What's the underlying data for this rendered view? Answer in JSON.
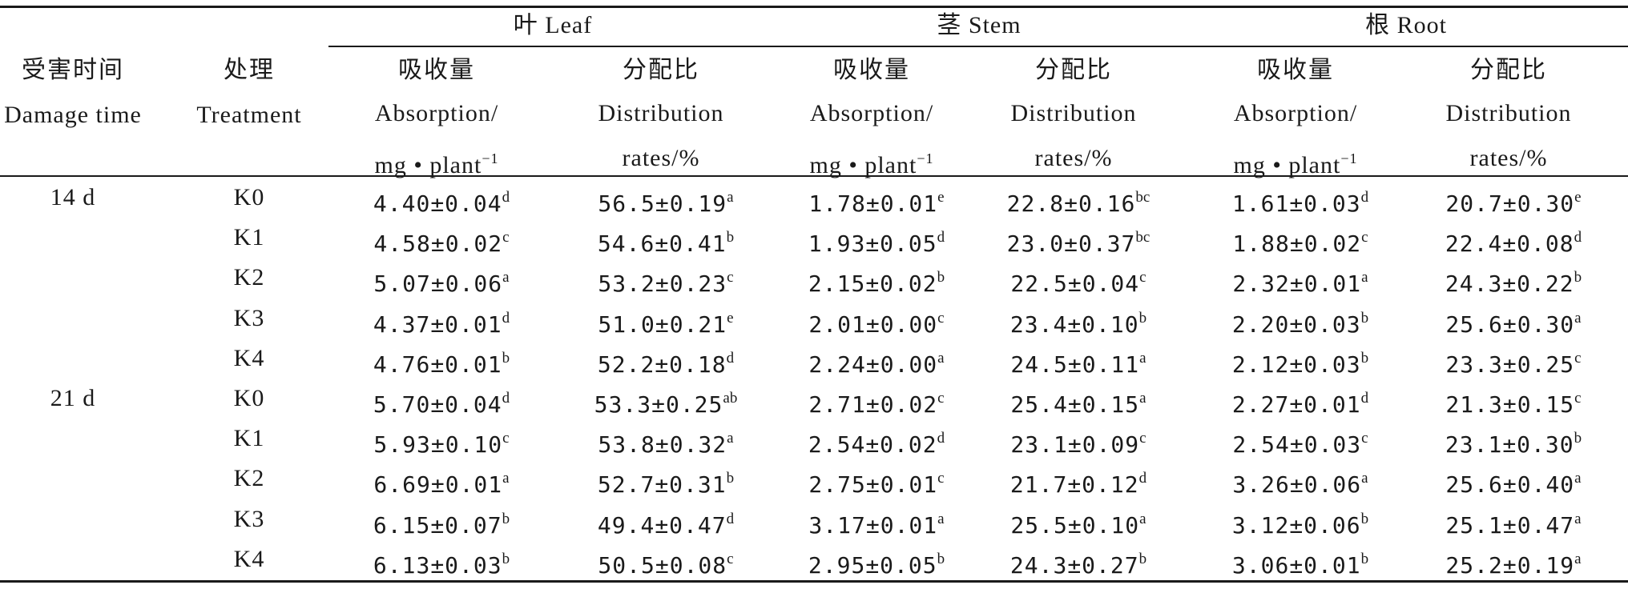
{
  "header": {
    "groups": [
      {
        "label": "叶 Leaf"
      },
      {
        "label": "茎 Stem"
      },
      {
        "label": "根 Root"
      }
    ],
    "damage_time_cn": "受害时间",
    "damage_time_en": "Damage time",
    "treatment_cn": "处理",
    "treatment_en": "Treatment",
    "absorption_cn": "吸收量",
    "absorption_en": "Absorption/",
    "absorption_unit": "mg • plant",
    "absorption_unit_exp": "−1",
    "distribution_cn": "分配比",
    "distribution_en": "Distribution",
    "distribution_unit": "rates/%"
  },
  "rows": [
    {
      "time": "14 d",
      "treatment": "K0",
      "cells": [
        [
          "4.40±0.04",
          "d"
        ],
        [
          "56.5±0.19",
          "a"
        ],
        [
          "1.78±0.01",
          "e"
        ],
        [
          "22.8±0.16",
          "bc"
        ],
        [
          "1.61±0.03",
          "d"
        ],
        [
          "20.7±0.30",
          "e"
        ]
      ]
    },
    {
      "time": "",
      "treatment": "K1",
      "cells": [
        [
          "4.58±0.02",
          "c"
        ],
        [
          "54.6±0.41",
          "b"
        ],
        [
          "1.93±0.05",
          "d"
        ],
        [
          "23.0±0.37",
          "bc"
        ],
        [
          "1.88±0.02",
          "c"
        ],
        [
          "22.4±0.08",
          "d"
        ]
      ]
    },
    {
      "time": "",
      "treatment": "K2",
      "cells": [
        [
          "5.07±0.06",
          "a"
        ],
        [
          "53.2±0.23",
          "c"
        ],
        [
          "2.15±0.02",
          "b"
        ],
        [
          "22.5±0.04",
          "c"
        ],
        [
          "2.32±0.01",
          "a"
        ],
        [
          "24.3±0.22",
          "b"
        ]
      ]
    },
    {
      "time": "",
      "treatment": "K3",
      "cells": [
        [
          "4.37±0.01",
          "d"
        ],
        [
          "51.0±0.21",
          "e"
        ],
        [
          "2.01±0.00",
          "c"
        ],
        [
          "23.4±0.10",
          "b"
        ],
        [
          "2.20±0.03",
          "b"
        ],
        [
          "25.6±0.30",
          "a"
        ]
      ]
    },
    {
      "time": "",
      "treatment": "K4",
      "cells": [
        [
          "4.76±0.01",
          "b"
        ],
        [
          "52.2±0.18",
          "d"
        ],
        [
          "2.24±0.00",
          "a"
        ],
        [
          "24.5±0.11",
          "a"
        ],
        [
          "2.12±0.03",
          "b"
        ],
        [
          "23.3±0.25",
          "c"
        ]
      ]
    },
    {
      "time": "21 d",
      "treatment": "K0",
      "cells": [
        [
          "5.70±0.04",
          "d"
        ],
        [
          "53.3±0.25",
          "ab"
        ],
        [
          "2.71±0.02",
          "c"
        ],
        [
          "25.4±0.15",
          "a"
        ],
        [
          "2.27±0.01",
          "d"
        ],
        [
          "21.3±0.15",
          "c"
        ]
      ]
    },
    {
      "time": "",
      "treatment": "K1",
      "cells": [
        [
          "5.93±0.10",
          "c"
        ],
        [
          "53.8±0.32",
          "a"
        ],
        [
          "2.54±0.02",
          "d"
        ],
        [
          "23.1±0.09",
          "c"
        ],
        [
          "2.54±0.03",
          "c"
        ],
        [
          "23.1±0.30",
          "b"
        ]
      ]
    },
    {
      "time": "",
      "treatment": "K2",
      "cells": [
        [
          "6.69±0.01",
          "a"
        ],
        [
          "52.7±0.31",
          "b"
        ],
        [
          "2.75±0.01",
          "c"
        ],
        [
          "21.7±0.12",
          "d"
        ],
        [
          "3.26±0.06",
          "a"
        ],
        [
          "25.6±0.40",
          "a"
        ]
      ]
    },
    {
      "time": "",
      "treatment": "K3",
      "cells": [
        [
          "6.15±0.07",
          "b"
        ],
        [
          "49.4±0.47",
          "d"
        ],
        [
          "3.17±0.01",
          "a"
        ],
        [
          "25.5±0.10",
          "a"
        ],
        [
          "3.12±0.06",
          "b"
        ],
        [
          "25.1±0.47",
          "a"
        ]
      ]
    },
    {
      "time": "",
      "treatment": "K4",
      "cells": [
        [
          "6.13±0.03",
          "b"
        ],
        [
          "50.5±0.08",
          "c"
        ],
        [
          "2.95±0.05",
          "b"
        ],
        [
          "24.3±0.27",
          "b"
        ],
        [
          "3.06±0.01",
          "b"
        ],
        [
          "25.2±0.19",
          "a"
        ]
      ]
    }
  ]
}
